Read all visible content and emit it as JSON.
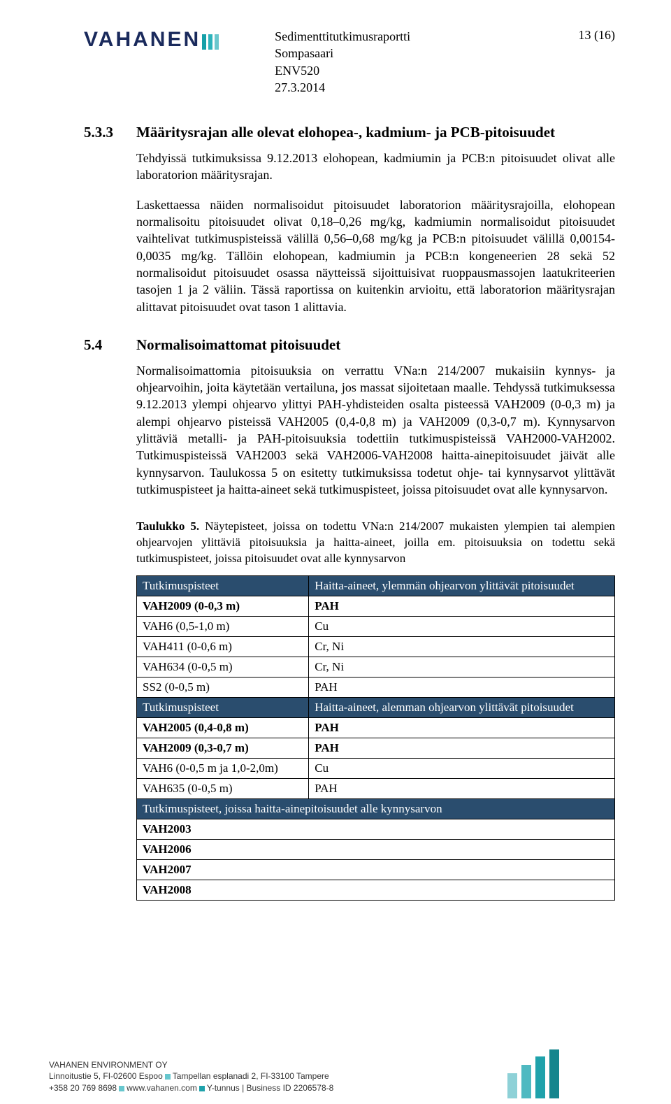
{
  "colors": {
    "logo_navy": "#1a2a5c",
    "table_header_bg": "#2a4d6e",
    "table_header_text": "#ffffff",
    "bar1": "#15a0a8",
    "bar2": "#2db3bb",
    "bar3": "#6bc7cd",
    "fbar1": "#8ed1d7",
    "fbar2": "#4fb9c1",
    "fbar3": "#1fa2ab",
    "fbar4": "#15858d",
    "sq_cyan": "#67c7ce",
    "sq_teal": "#1fa2ab"
  },
  "logo": {
    "text": "VAHANEN"
  },
  "header": {
    "line1": "Sedimenttitutkimusraportti",
    "line2": "Sompasaari",
    "line3": "ENV520",
    "line4": "27.3.2014",
    "page_num": "13 (16)"
  },
  "h1": {
    "num": "5.3.3",
    "txt": "Määritysrajan alle olevat elohopea-, kadmium- ja PCB-pitoisuudet"
  },
  "p1": "Tehdyissä tutkimuksissa 9.12.2013 elohopean, kadmiumin ja PCB:n pitoisuudet olivat alle laboratorion määritysrajan.",
  "p2": "Laskettaessa näiden normalisoidut pitoisuudet laboratorion määritysrajoilla, elohopean normalisoitu pitoisuudet olivat 0,18–0,26 mg/kg, kadmiumin normalisoidut pitoisuudet vaihtelivat tutkimuspisteissä välillä 0,56–0,68 mg/kg ja PCB:n pitoisuudet välillä 0,00154-0,0035 mg/kg. Tällöin elohopean, kadmiumin ja PCB:n kongeneerien 28 sekä 52 normalisoidut pitoisuudet osassa näytteissä sijoittuisivat ruoppausmassojen laatukriteerien tasojen 1 ja 2 väliin. Tässä raportissa on kuitenkin arvioitu, että laboratorion määritysrajan alittavat pitoisuudet ovat tason 1 alittavia.",
  "h2": {
    "num": "5.4",
    "txt": "Normalisoimattomat pitoisuudet"
  },
  "p3": "Normalisoimattomia pitoisuuksia on verrattu VNa:n 214/2007 mukaisiin kynnys- ja ohjearvoihin, joita käytetään vertailuna, jos massat sijoitetaan maalle. Tehdyssä tutkimuksessa 9.12.2013 ylempi ohjearvo ylittyi PAH-yhdisteiden osalta pisteessä VAH2009 (0-0,3 m) ja alempi ohjearvo pisteissä VAH2005 (0,4-0,8 m) ja VAH2009 (0,3-0,7 m). Kynnysarvon ylittäviä metalli- ja PAH-pitoisuuksia todettiin tutkimuspisteissä VAH2000-VAH2002. Tutkimuspisteissä VAH2003 sekä VAH2006-VAH2008 haitta-ainepitoisuudet jäivät alle kynnysarvon. Taulukossa 5 on esitetty tutkimuksissa todetut ohje- tai kynnysarvot ylittävät tutkimuspisteet ja haitta-aineet sekä tutkimuspisteet, joissa pitoisuudet ovat alle kynnysarvon.",
  "table_caption_b": "Taulukko 5.",
  "table_caption": " Näytepisteet, joissa on todettu VNa:n 214/2007 mukaisten ylempien tai alempien ohjearvojen ylittäviä pitoisuuksia ja haitta-aineet, joilla em. pitoisuuksia on todettu sekä tutkimuspisteet, joissa pitoisuudet ovat alle kynnysarvon",
  "table": {
    "col_widths": [
      "36%",
      "64%"
    ],
    "hdr1": {
      "c1": "Tutkimuspisteet",
      "c2": "Haitta-aineet, ylemmän ohjearvon ylittävät pitoisuudet"
    },
    "rows1": [
      {
        "c1": "VAH2009 (0-0,3 m)",
        "c2": "PAH",
        "bold1": true,
        "bold2": true
      },
      {
        "c1": "VAH6 (0,5-1,0 m)",
        "c2": "Cu",
        "bold1": false,
        "bold2": false
      },
      {
        "c1": "VAH411 (0-0,6 m)",
        "c2": "Cr, Ni",
        "bold1": false,
        "bold2": false
      },
      {
        "c1": "VAH634 (0-0,5 m)",
        "c2": "Cr, Ni",
        "bold1": false,
        "bold2": false
      },
      {
        "c1": "SS2 (0-0,5 m)",
        "c2": "PAH",
        "bold1": false,
        "bold2": false
      }
    ],
    "hdr2": {
      "c1": "Tutkimuspisteet",
      "c2": "Haitta-aineet, alemman ohjearvon ylittävät pitoisuudet"
    },
    "rows2": [
      {
        "c1": "VAH2005 (0,4-0,8 m)",
        "c2": "PAH",
        "bold1": true,
        "bold2": true
      },
      {
        "c1": "VAH2009 (0,3-0,7 m)",
        "c2": "PAH",
        "bold1": true,
        "bold2": true
      },
      {
        "c1": "VAH6 (0-0,5 m ja 1,0-2,0m)",
        "c2": "Cu",
        "bold1": false,
        "bold2": false
      },
      {
        "c1": "VAH635 (0-0,5 m)",
        "c2": "PAH",
        "bold1": false,
        "bold2": false
      }
    ],
    "span": "Tutkimuspisteet, joissa haitta-ainepitoisuudet alle kynnysarvon",
    "rows3": [
      {
        "c1": "VAH2003",
        "bold1": true
      },
      {
        "c1": "VAH2006",
        "bold1": true
      },
      {
        "c1": "VAH2007",
        "bold1": true
      },
      {
        "c1": "VAH2008",
        "bold1": true
      }
    ]
  },
  "footer": {
    "l1": "VAHANEN ENVIRONMENT OY",
    "l2a": "Linnoitustie 5, FI-02600 Espoo",
    "l2b": "Tampellan esplanadi 2, FI-33100 Tampere",
    "l3a": "+358 20 769 8698",
    "l3b": "www.vahanen.com",
    "l3c": "Y-tunnus | Business ID 2206578-8"
  },
  "footer_bars": {
    "heights": [
      36,
      48,
      60,
      70
    ]
  }
}
